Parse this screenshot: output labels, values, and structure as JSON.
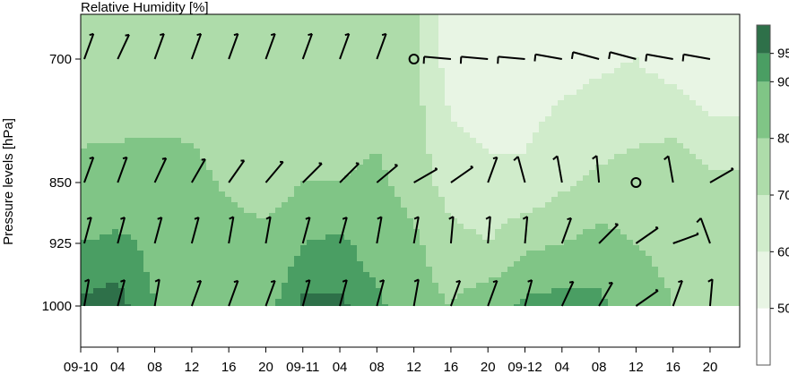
{
  "chart_data": {
    "type": "heatmap",
    "title": "Relative Humidity [%]",
    "ylabel": "Pressure levels [hPa]",
    "xlabel": "",
    "x_tick_labels": [
      "09-10",
      "04",
      "08",
      "12",
      "16",
      "20",
      "09-11",
      "04",
      "08",
      "12",
      "16",
      "20",
      "09-12",
      "04",
      "08",
      "12",
      "16",
      "20"
    ],
    "y_levels": [
      700,
      850,
      925,
      1000
    ],
    "y_tick_labels": [
      "700",
      "850",
      "925",
      "1000"
    ],
    "colorbar": {
      "ticks": [
        50,
        60,
        70,
        80,
        90,
        95
      ],
      "tick_labels": [
        "50",
        "60",
        "70",
        "80",
        "90",
        "95"
      ],
      "bands": [
        {
          "range": [
            40,
            50
          ],
          "color": "#ffffff"
        },
        {
          "range": [
            50,
            60
          ],
          "color": "#e8f5e4"
        },
        {
          "range": [
            60,
            70
          ],
          "color": "#d0eccb"
        },
        {
          "range": [
            70,
            80
          ],
          "color": "#aedcaa"
        },
        {
          "range": [
            80,
            90
          ],
          "color": "#80c586"
        },
        {
          "range": [
            90,
            95
          ],
          "color": "#4a9e63"
        },
        {
          "range": [
            95,
            100
          ],
          "color": "#2e7049"
        }
      ]
    },
    "series": [
      {
        "level": 700,
        "rh": [
          75,
          74,
          73,
          72,
          71,
          72,
          73,
          72,
          74,
          72,
          55,
          54,
          54,
          56,
          58,
          60,
          55,
          50
        ]
      },
      {
        "level": 850,
        "rh": [
          82,
          83,
          84,
          84,
          78,
          74,
          80,
          80,
          82,
          76,
          65,
          62,
          62,
          68,
          72,
          74,
          78,
          72
        ]
      },
      {
        "level": 925,
        "rh": [
          90,
          92,
          88,
          86,
          85,
          84,
          90,
          92,
          86,
          82,
          74,
          70,
          78,
          80,
          84,
          80,
          78,
          74
        ]
      },
      {
        "level": 1000,
        "rh": [
          96,
          97,
          90,
          86,
          84,
          88,
          96,
          96,
          92,
          84,
          80,
          86,
          92,
          94,
          92,
          84,
          80,
          78
        ]
      }
    ],
    "wind_barbs": [
      {
        "level": 700,
        "calm_at": [
          9
        ]
      },
      {
        "level": 850,
        "calm_at": [
          15
        ]
      },
      {
        "level": 925,
        "calm_at": []
      },
      {
        "level": 1000,
        "calm_at": []
      }
    ]
  }
}
